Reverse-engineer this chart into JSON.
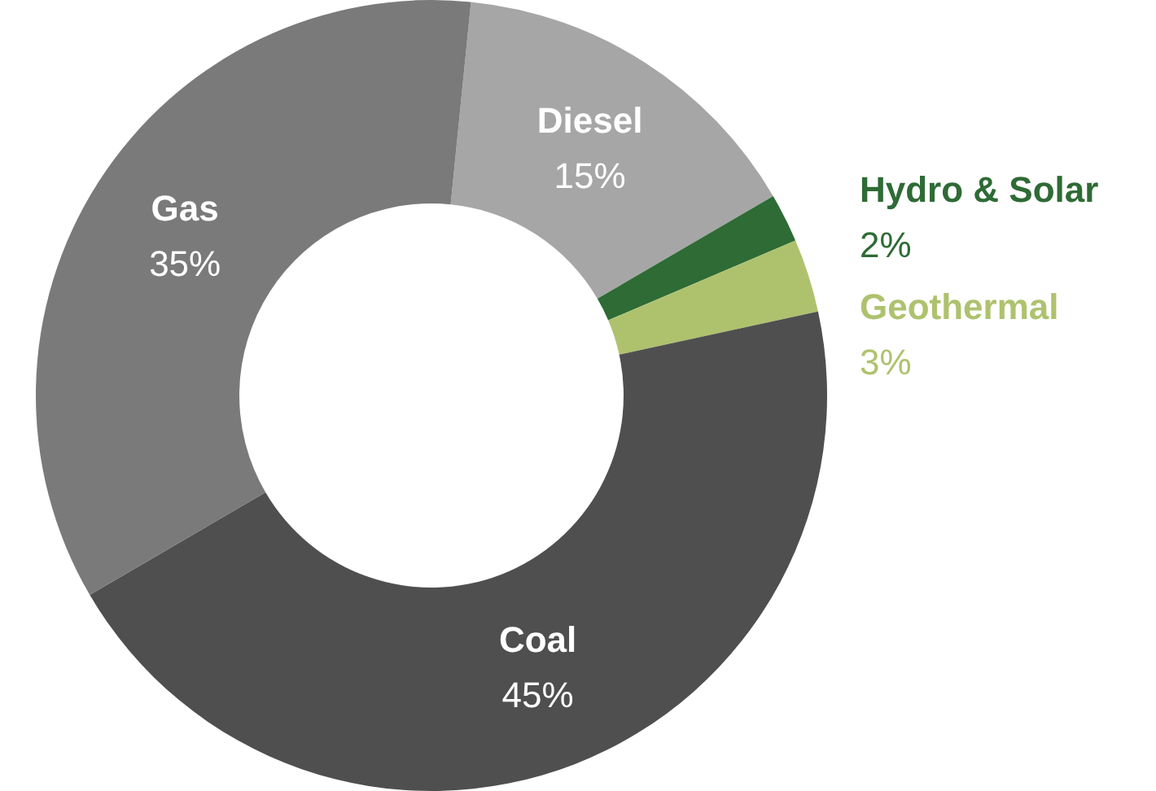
{
  "chart_data": {
    "type": "donut",
    "categories": [
      "Diesel",
      "Hydro & Solar",
      "Geothermal",
      "Coal",
      "Gas"
    ],
    "values": [
      15,
      2,
      3,
      45,
      35
    ],
    "value_labels": [
      "15%",
      "2%",
      "3%",
      "45%",
      "35%"
    ],
    "colors": [
      "#a6a6a6",
      "#2e6b35",
      "#aec26e",
      "#4f4f4f",
      "#7a7a7a"
    ]
  }
}
